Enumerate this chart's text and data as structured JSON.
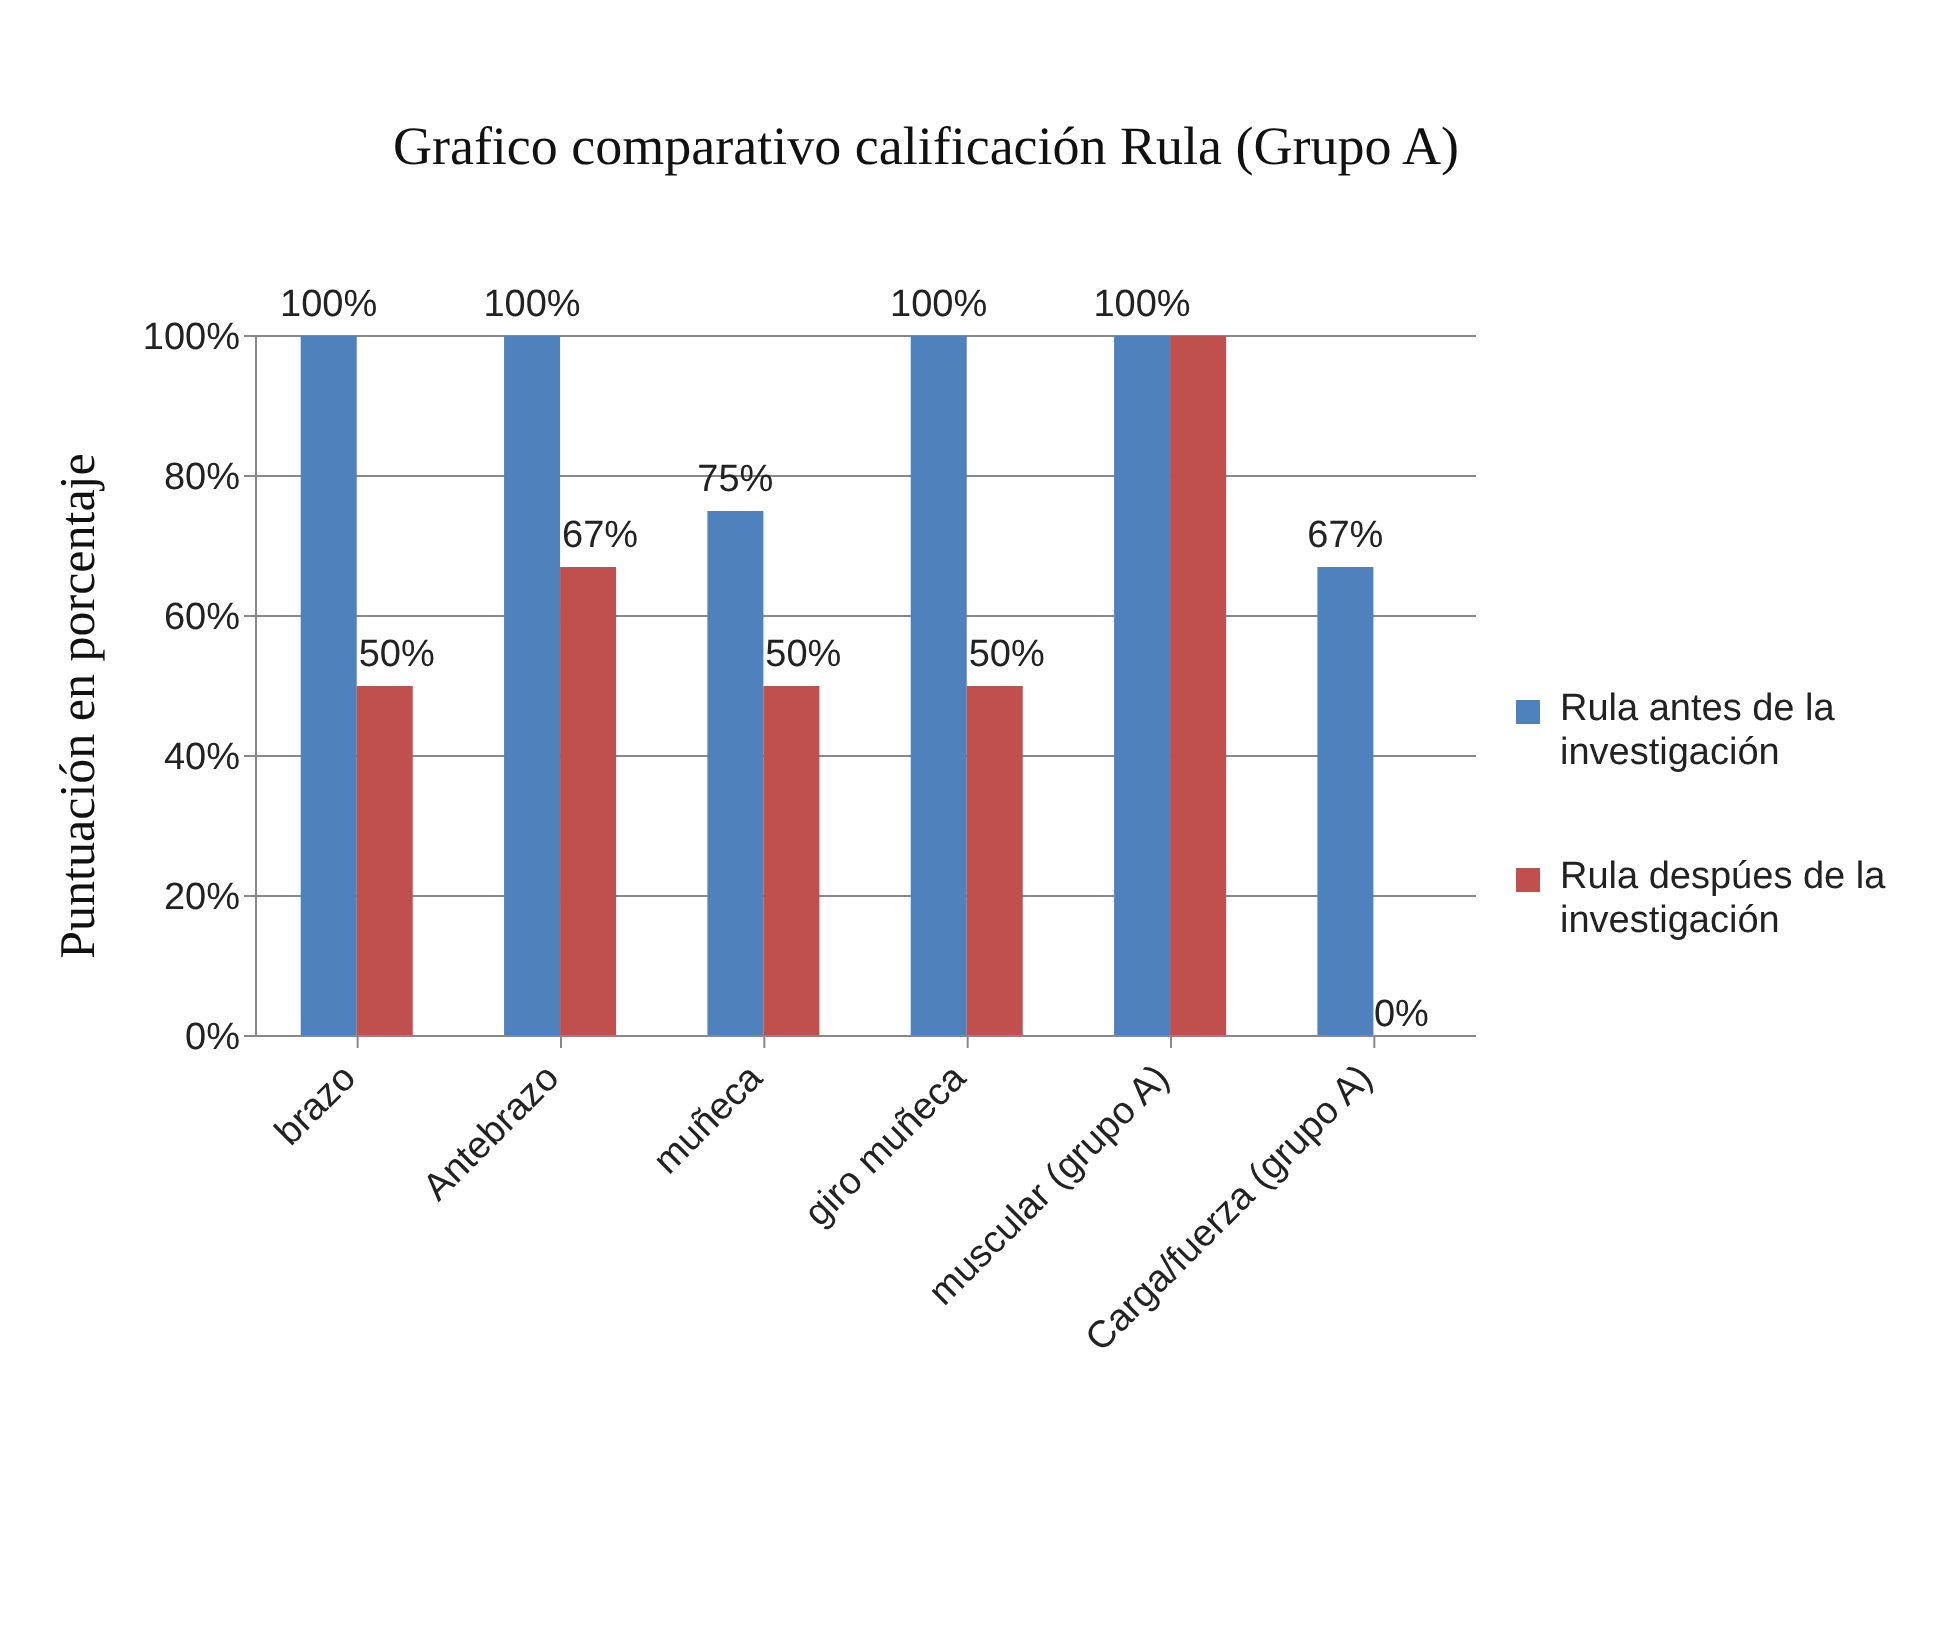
{
  "chart_data": {
    "type": "bar",
    "title": "Grafico comparativo calificación Rula (Grupo A)",
    "ylabel": "Puntuación en porcentaje",
    "categories": [
      "brazo",
      "Antebrazo",
      "muñeca",
      "giro muñeca",
      "muscular (grupo A)",
      "Carga/fuerza (grupo A)"
    ],
    "series": [
      {
        "name": "Rula antes de la investigación",
        "color": "#4f81bd",
        "values": [
          100,
          100,
          75,
          100,
          100,
          67
        ],
        "value_labels": [
          "100%",
          "100%",
          "75%",
          "100%",
          "100%",
          "67%"
        ]
      },
      {
        "name": "Rula despúes de la investigación",
        "color": "#c0504d",
        "values": [
          50,
          67,
          50,
          50,
          100,
          0
        ],
        "value_labels": [
          "50%",
          "67%",
          "50%",
          "50%",
          null,
          "0%"
        ]
      }
    ],
    "ylim": [
      0,
      100
    ],
    "yticks": [
      {
        "value": 0,
        "label": "0%"
      },
      {
        "value": 20,
        "label": "20%"
      },
      {
        "value": 40,
        "label": "40%"
      },
      {
        "value": 60,
        "label": "60%"
      },
      {
        "value": 80,
        "label": "80%"
      },
      {
        "value": 100,
        "label": "100%"
      }
    ],
    "grid": "y",
    "legend": "right"
  }
}
